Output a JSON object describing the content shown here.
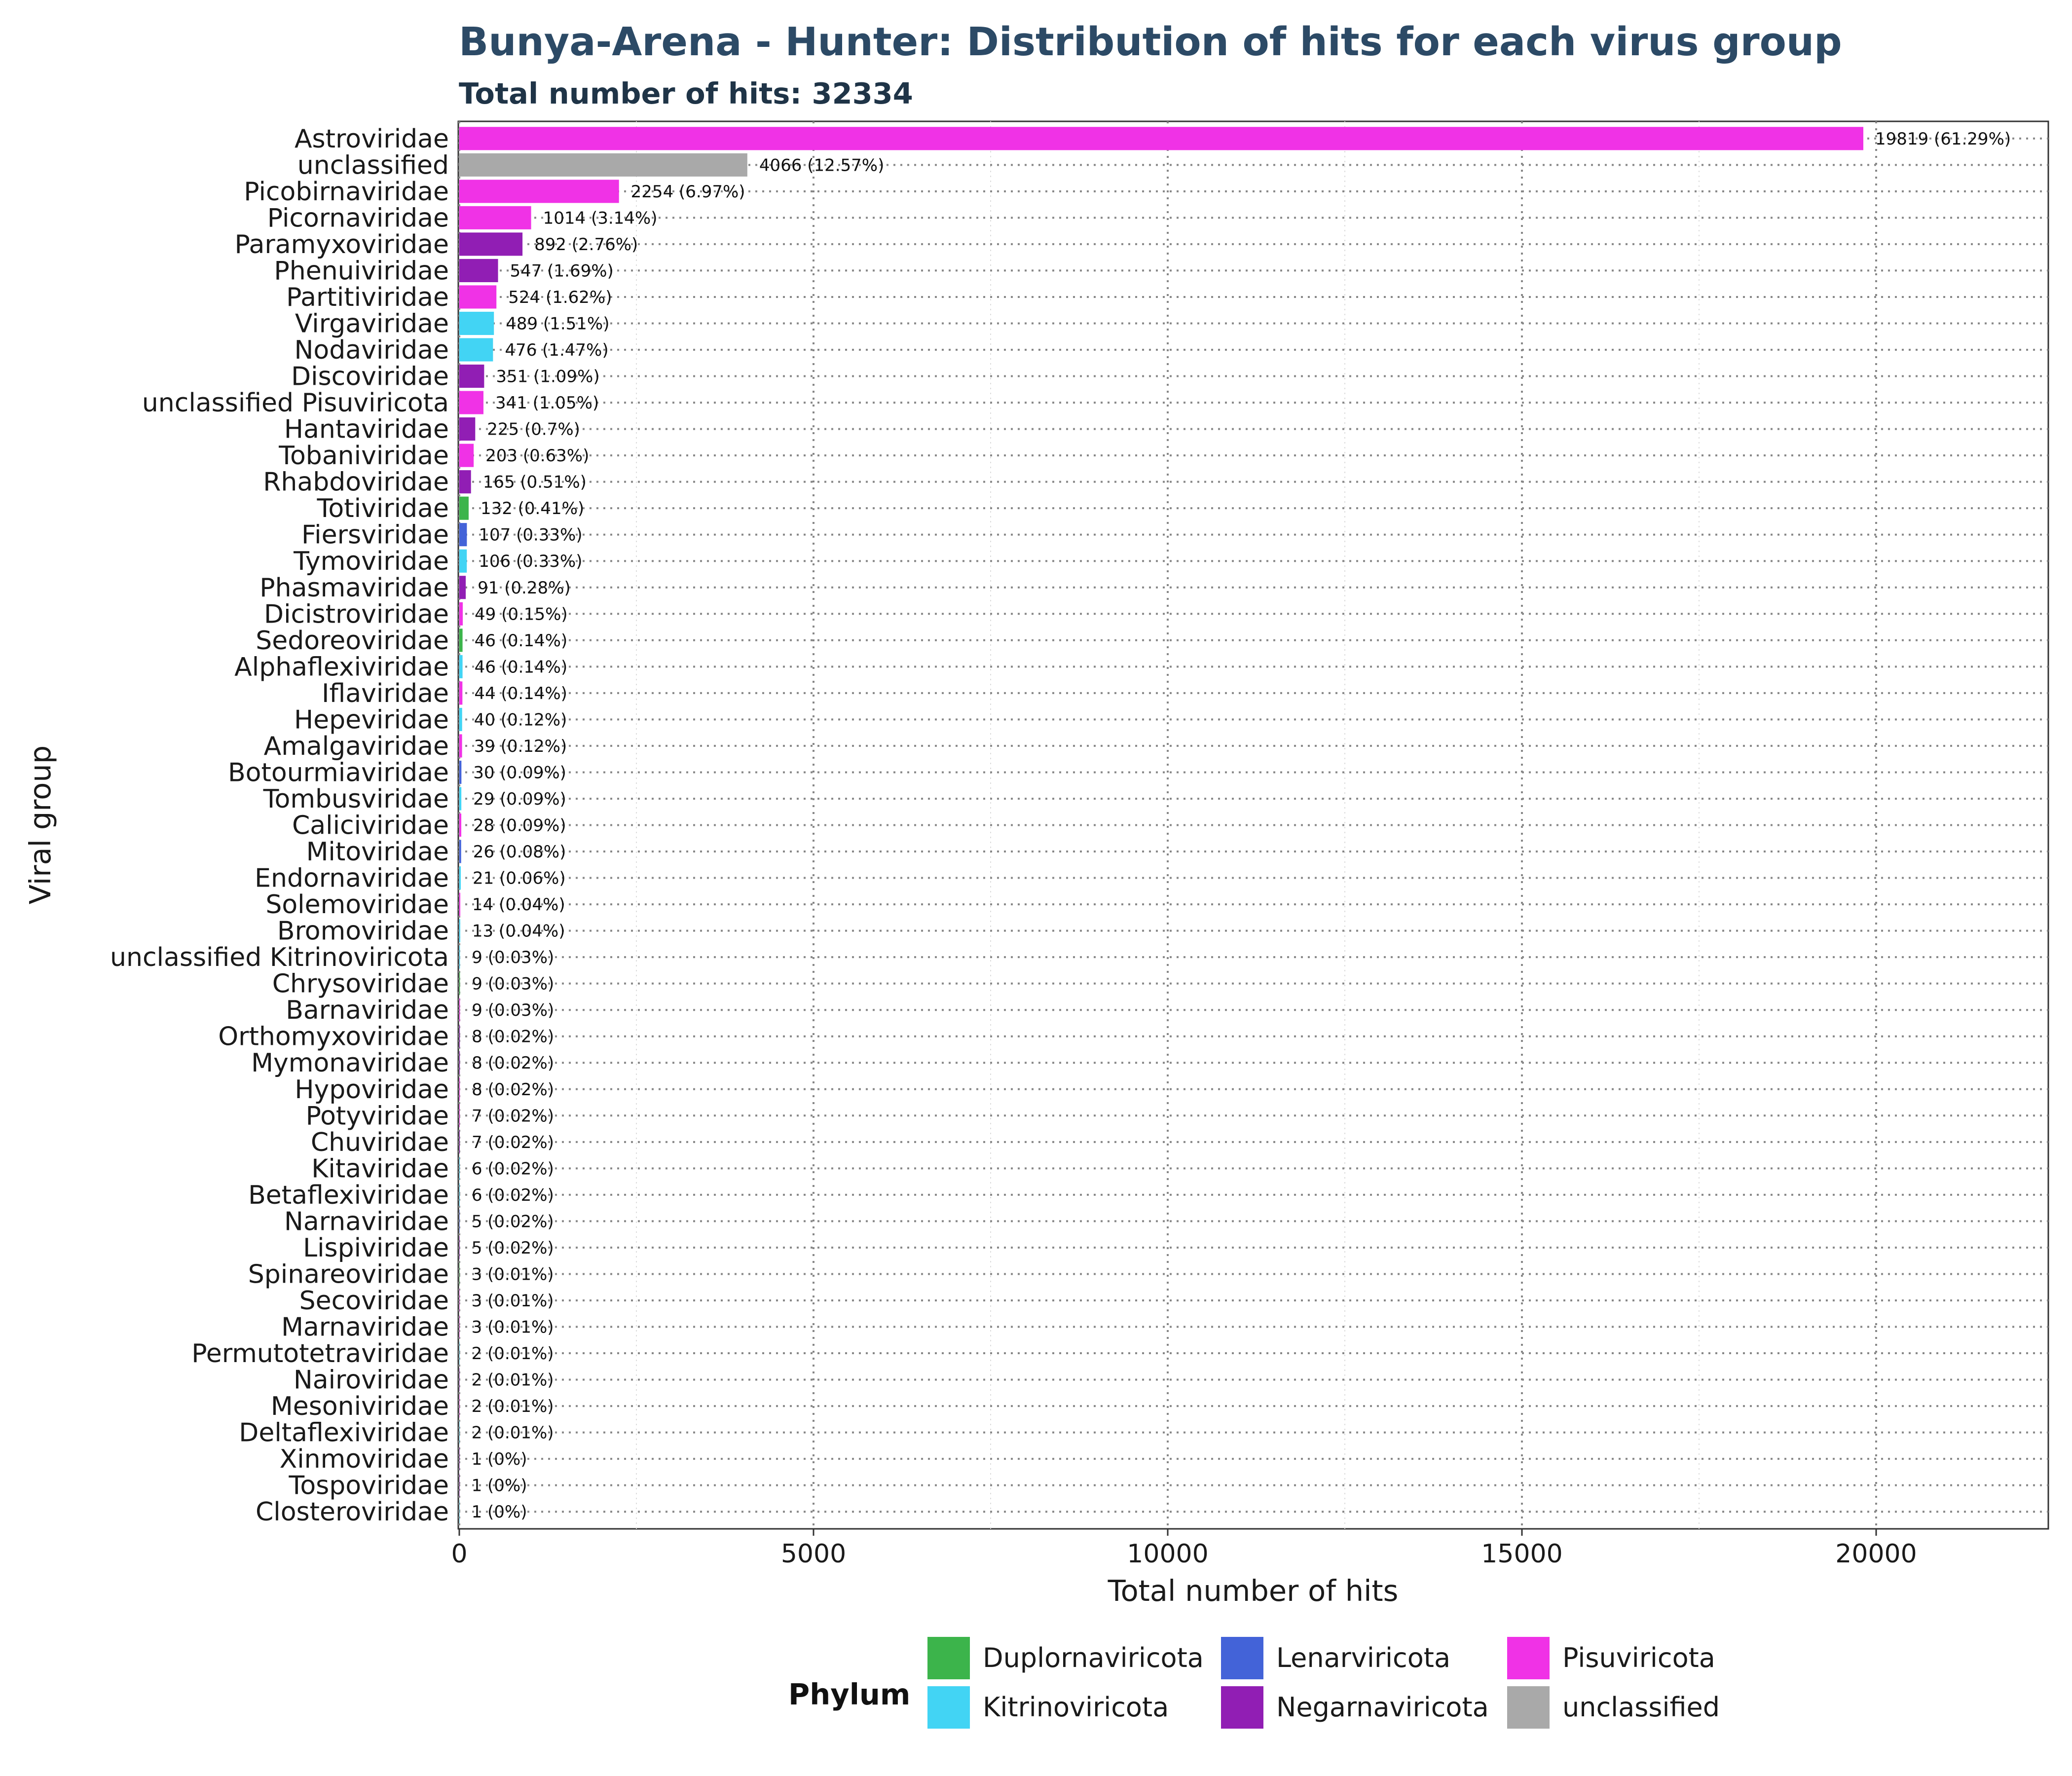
{
  "chart_data": {
    "type": "bar",
    "orientation": "horizontal",
    "title": "Bunya-Arena - Hunter: Distribution of hits for each virus group",
    "subtitle": "Total number of hits: 32334",
    "xlabel": "Total number of hits",
    "ylabel": "Viral group",
    "xlim": [
      0,
      22300
    ],
    "xticks": [
      0,
      5000,
      10000,
      15000,
      20000
    ],
    "grid": true,
    "legend": {
      "title": "Phylum",
      "position": "bottom"
    },
    "phyla": [
      {
        "name": "Duplornaviricota",
        "color": "#3cb44b"
      },
      {
        "name": "Kitrinoviricota",
        "color": "#42d4f4"
      },
      {
        "name": "Lenarviricota",
        "color": "#4363d8"
      },
      {
        "name": "Negarnaviricota",
        "color": "#911eb4"
      },
      {
        "name": "Pisuviricota",
        "color": "#f032e6"
      },
      {
        "name": "unclassified",
        "color": "#a9a9a9"
      }
    ],
    "bars": [
      {
        "group": "Astroviridae",
        "value": 19819,
        "label": "19819 (61.29%)",
        "phylum": "Pisuviricota"
      },
      {
        "group": "unclassified",
        "value": 4066,
        "label": "4066 (12.57%)",
        "phylum": "unclassified"
      },
      {
        "group": "Picobirnaviridae",
        "value": 2254,
        "label": "2254 (6.97%)",
        "phylum": "Pisuviricota"
      },
      {
        "group": "Picornaviridae",
        "value": 1014,
        "label": "1014 (3.14%)",
        "phylum": "Pisuviricota"
      },
      {
        "group": "Paramyxoviridae",
        "value": 892,
        "label": "892 (2.76%)",
        "phylum": "Negarnaviricota"
      },
      {
        "group": "Phenuiviridae",
        "value": 547,
        "label": "547 (1.69%)",
        "phylum": "Negarnaviricota"
      },
      {
        "group": "Partitiviridae",
        "value": 524,
        "label": "524 (1.62%)",
        "phylum": "Pisuviricota"
      },
      {
        "group": "Virgaviridae",
        "value": 489,
        "label": "489 (1.51%)",
        "phylum": "Kitrinoviricota"
      },
      {
        "group": "Nodaviridae",
        "value": 476,
        "label": "476 (1.47%)",
        "phylum": "Kitrinoviricota"
      },
      {
        "group": "Discoviridae",
        "value": 351,
        "label": "351 (1.09%)",
        "phylum": "Negarnaviricota"
      },
      {
        "group": "unclassified Pisuviricota",
        "value": 341,
        "label": "341 (1.05%)",
        "phylum": "Pisuviricota"
      },
      {
        "group": "Hantaviridae",
        "value": 225,
        "label": "225 (0.7%)",
        "phylum": "Negarnaviricota"
      },
      {
        "group": "Tobaniviridae",
        "value": 203,
        "label": "203 (0.63%)",
        "phylum": "Pisuviricota"
      },
      {
        "group": "Rhabdoviridae",
        "value": 165,
        "label": "165 (0.51%)",
        "phylum": "Negarnaviricota"
      },
      {
        "group": "Totiviridae",
        "value": 132,
        "label": "132 (0.41%)",
        "phylum": "Duplornaviricota"
      },
      {
        "group": "Fiersviridae",
        "value": 107,
        "label": "107 (0.33%)",
        "phylum": "Lenarviricota"
      },
      {
        "group": "Tymoviridae",
        "value": 106,
        "label": "106 (0.33%)",
        "phylum": "Kitrinoviricota"
      },
      {
        "group": "Phasmaviridae",
        "value": 91,
        "label": "91 (0.28%)",
        "phylum": "Negarnaviricota"
      },
      {
        "group": "Dicistroviridae",
        "value": 49,
        "label": "49 (0.15%)",
        "phylum": "Pisuviricota"
      },
      {
        "group": "Sedoreoviridae",
        "value": 46,
        "label": "46 (0.14%)",
        "phylum": "Duplornaviricota"
      },
      {
        "group": "Alphaflexiviridae",
        "value": 46,
        "label": "46 (0.14%)",
        "phylum": "Kitrinoviricota"
      },
      {
        "group": "Iflaviridae",
        "value": 44,
        "label": "44 (0.14%)",
        "phylum": "Pisuviricota"
      },
      {
        "group": "Hepeviridae",
        "value": 40,
        "label": "40 (0.12%)",
        "phylum": "Kitrinoviricota"
      },
      {
        "group": "Amalgaviridae",
        "value": 39,
        "label": "39 (0.12%)",
        "phylum": "Pisuviricota"
      },
      {
        "group": "Botourmiaviridae",
        "value": 30,
        "label": "30 (0.09%)",
        "phylum": "Lenarviricota"
      },
      {
        "group": "Tombusviridae",
        "value": 29,
        "label": "29 (0.09%)",
        "phylum": "Kitrinoviricota"
      },
      {
        "group": "Caliciviridae",
        "value": 28,
        "label": "28 (0.09%)",
        "phylum": "Pisuviricota"
      },
      {
        "group": "Mitoviridae",
        "value": 26,
        "label": "26 (0.08%)",
        "phylum": "Lenarviricota"
      },
      {
        "group": "Endornaviridae",
        "value": 21,
        "label": "21 (0.06%)",
        "phylum": "Kitrinoviricota"
      },
      {
        "group": "Solemoviridae",
        "value": 14,
        "label": "14 (0.04%)",
        "phylum": "Pisuviricota"
      },
      {
        "group": "Bromoviridae",
        "value": 13,
        "label": "13 (0.04%)",
        "phylum": "Kitrinoviricota"
      },
      {
        "group": "unclassified Kitrinoviricota",
        "value": 9,
        "label": "9 (0.03%)",
        "phylum": "Kitrinoviricota"
      },
      {
        "group": "Chrysoviridae",
        "value": 9,
        "label": "9 (0.03%)",
        "phylum": "Duplornaviricota"
      },
      {
        "group": "Barnaviridae",
        "value": 9,
        "label": "9 (0.03%)",
        "phylum": "Pisuviricota"
      },
      {
        "group": "Orthomyxoviridae",
        "value": 8,
        "label": "8 (0.02%)",
        "phylum": "Negarnaviricota"
      },
      {
        "group": "Mymonaviridae",
        "value": 8,
        "label": "8 (0.02%)",
        "phylum": "Negarnaviricota"
      },
      {
        "group": "Hypoviridae",
        "value": 8,
        "label": "8 (0.02%)",
        "phylum": "Pisuviricota"
      },
      {
        "group": "Potyviridae",
        "value": 7,
        "label": "7 (0.02%)",
        "phylum": "Pisuviricota"
      },
      {
        "group": "Chuviridae",
        "value": 7,
        "label": "7 (0.02%)",
        "phylum": "Negarnaviricota"
      },
      {
        "group": "Kitaviridae",
        "value": 6,
        "label": "6 (0.02%)",
        "phylum": "Kitrinoviricota"
      },
      {
        "group": "Betaflexiviridae",
        "value": 6,
        "label": "6 (0.02%)",
        "phylum": "Kitrinoviricota"
      },
      {
        "group": "Narnaviridae",
        "value": 5,
        "label": "5 (0.02%)",
        "phylum": "Lenarviricota"
      },
      {
        "group": "Lispiviridae",
        "value": 5,
        "label": "5 (0.02%)",
        "phylum": "Negarnaviricota"
      },
      {
        "group": "Spinareoviridae",
        "value": 3,
        "label": "3 (0.01%)",
        "phylum": "Duplornaviricota"
      },
      {
        "group": "Secoviridae",
        "value": 3,
        "label": "3 (0.01%)",
        "phylum": "Pisuviricota"
      },
      {
        "group": "Marnaviridae",
        "value": 3,
        "label": "3 (0.01%)",
        "phylum": "Pisuviricota"
      },
      {
        "group": "Permutotetraviridae",
        "value": 2,
        "label": "2 (0.01%)",
        "phylum": "Kitrinoviricota"
      },
      {
        "group": "Nairoviridae",
        "value": 2,
        "label": "2 (0.01%)",
        "phylum": "Negarnaviricota"
      },
      {
        "group": "Mesoniviridae",
        "value": 2,
        "label": "2 (0.01%)",
        "phylum": "Pisuviricota"
      },
      {
        "group": "Deltaflexiviridae",
        "value": 2,
        "label": "2 (0.01%)",
        "phylum": "Kitrinoviricota"
      },
      {
        "group": "Xinmoviridae",
        "value": 1,
        "label": "1 (0%)",
        "phylum": "Negarnaviricota"
      },
      {
        "group": "Tospoviridae",
        "value": 1,
        "label": "1 (0%)",
        "phylum": "Negarnaviricota"
      },
      {
        "group": "Closteroviridae",
        "value": 1,
        "label": "1 (0%)",
        "phylum": "Kitrinoviricota"
      }
    ]
  }
}
